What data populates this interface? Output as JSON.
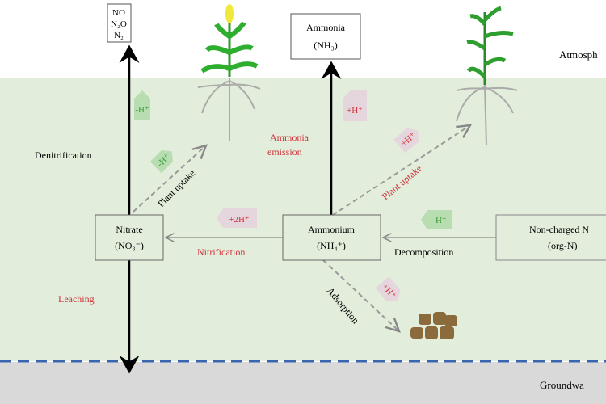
{
  "zones": {
    "atmosphere": "Atmosph",
    "groundwater": "Groundwa"
  },
  "boxes": {
    "gases": [
      "NO",
      "N₂O",
      "N₂"
    ],
    "ammonia": [
      "Ammonia",
      "(NH₃)"
    ],
    "nitrate": [
      "Nitrate",
      "(NO₃⁻)"
    ],
    "ammonium": [
      "Ammonium",
      "(NH₄⁺)"
    ],
    "organic": [
      "Non-charged N",
      "(org-N)"
    ]
  },
  "processes": {
    "denitrification": "Denitrification",
    "leaching": "Leaching",
    "nitrification": "Nitrification",
    "decomposition": "Decomposition",
    "ammonia_emission": [
      "Ammonia",
      "emission"
    ],
    "plant_uptake_nitrate": "Plant uptake",
    "plant_uptake_ammonium": "Plant uptake",
    "adsorption": "Adsorption"
  },
  "tags": {
    "denitrification": "-H⁺",
    "uptake_nitrate": "-H⁺",
    "emission": "+H⁺",
    "uptake_ammonium": "+H⁺",
    "nitrification": "+2H⁺",
    "decomposition": "-H⁺",
    "adsorption": "+H⁺"
  },
  "colors": {
    "soil": "#e2eedb",
    "groundwater": "#d9d9d9",
    "water_line": "#3a66b0",
    "red_label": "#d0323a",
    "green_tag": "#b7ddb0",
    "pink_tag": "#e4d6dc"
  }
}
